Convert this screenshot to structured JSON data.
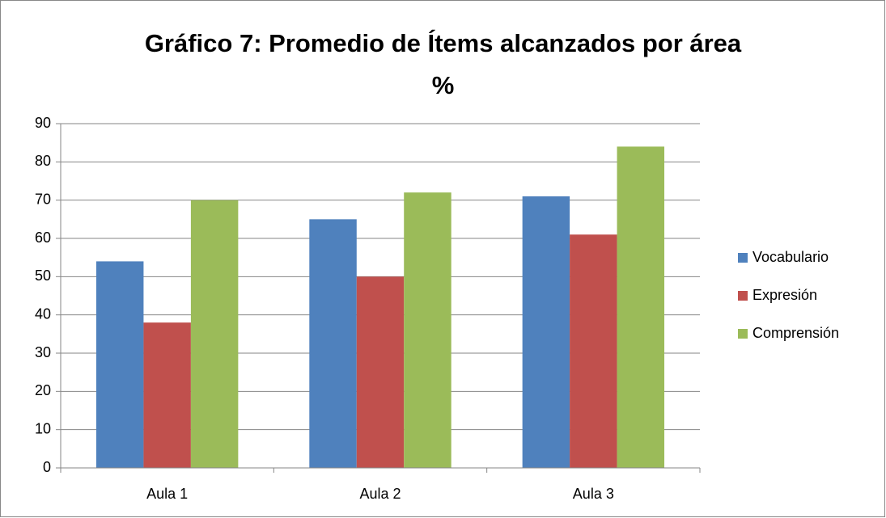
{
  "chart_data": {
    "type": "bar",
    "title": "Gráfico 7: Promedio de Ítems alcanzados por área %",
    "categories": [
      "Aula 1",
      "Aula 2",
      "Aula 3"
    ],
    "series": [
      {
        "name": "Vocabulario",
        "color": "#4f81bd",
        "values": [
          54,
          65,
          71
        ]
      },
      {
        "name": "Expresión",
        "color": "#c0504d",
        "values": [
          38,
          50,
          61
        ]
      },
      {
        "name": "Comprensión",
        "color": "#9bbb59",
        "values": [
          70,
          72,
          84
        ]
      }
    ],
    "ylim": [
      0,
      90
    ],
    "yticks": [
      0,
      10,
      20,
      30,
      40,
      50,
      60,
      70,
      80,
      90
    ],
    "grid": true,
    "legend": "right"
  }
}
